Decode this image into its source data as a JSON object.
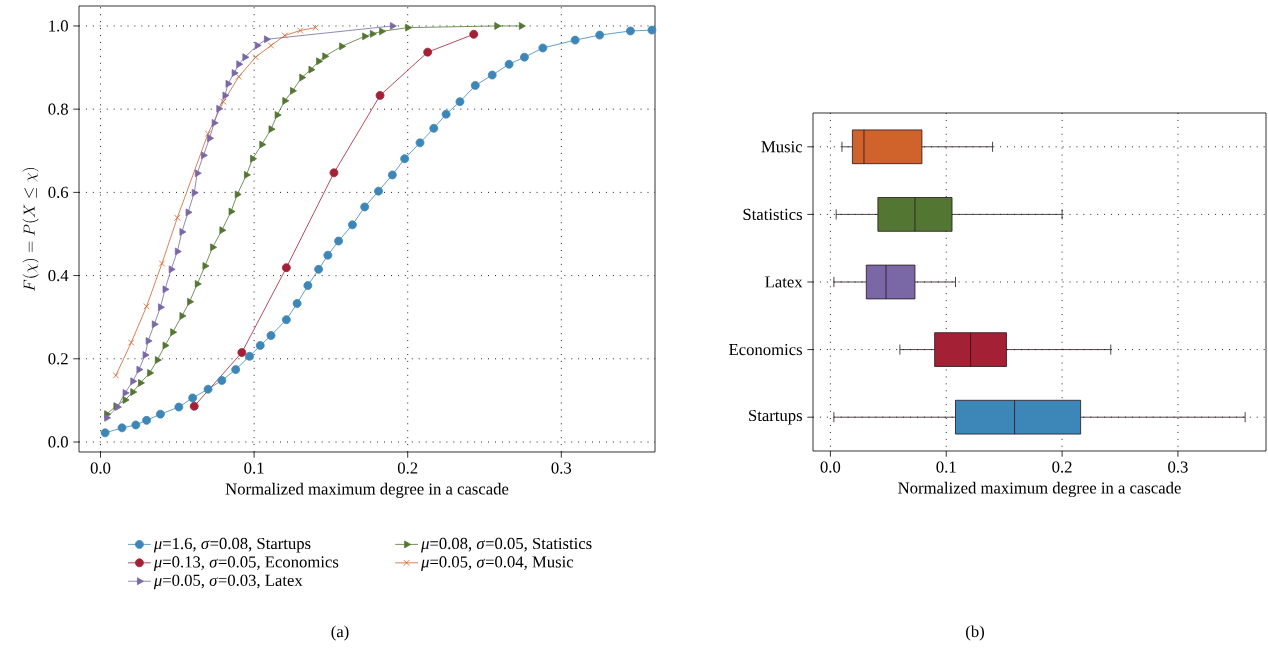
{
  "chart_data": [
    {
      "type": "line",
      "xlabel": "Normalized maximum degree in a cascade",
      "ylabel": "F(\\chi) = P(X \\leq \\chi)",
      "xlim": [
        -0.014,
        0.361
      ],
      "ylim": [
        -0.024,
        1.048
      ],
      "xticks": [
        {
          "value": 0,
          "label": "0.0"
        },
        0.1,
        0.2,
        0.3
      ],
      "yticks": [
        {
          "value": 0,
          "label": "0.0"
        },
        0.2,
        0.4,
        0.6,
        0.8,
        {
          "value": 1,
          "label": "1.0"
        }
      ],
      "grid": true,
      "legend": "bottom",
      "annotations": [
        "(a)"
      ],
      "series": [
        {
          "name": "*μ*=1.6, *σ*=0.08, Startups",
          "color": "#3d87b8",
          "marker": "circle",
          "x": [
            0.003,
            0.014,
            0.023,
            0.03,
            0.039,
            0.051,
            0.06,
            0.07,
            0.079,
            0.088,
            0.097,
            0.104,
            0.111,
            0.121,
            0.128,
            0.135,
            0.142,
            0.148,
            0.155,
            0.164,
            0.172,
            0.181,
            0.19,
            0.198,
            0.208,
            0.217,
            0.225,
            0.234,
            0.244,
            0.255,
            0.266,
            0.276,
            0.288,
            0.309,
            0.325,
            0.345,
            0.359
          ],
          "values": [
            0.022,
            0.034,
            0.041,
            0.052,
            0.067,
            0.084,
            0.106,
            0.127,
            0.148,
            0.174,
            0.206,
            0.232,
            0.256,
            0.294,
            0.333,
            0.376,
            0.415,
            0.449,
            0.483,
            0.522,
            0.565,
            0.603,
            0.642,
            0.681,
            0.719,
            0.754,
            0.788,
            0.818,
            0.857,
            0.882,
            0.908,
            0.925,
            0.947,
            0.966,
            0.978,
            0.988,
            0.99
          ]
        },
        {
          "name": "*μ*=0.08, *σ*=0.05, Statistics",
          "color": "#537633",
          "marker": "triangle",
          "x": [
            0.004,
            0.01,
            0.016,
            0.021,
            0.026,
            0.032,
            0.037,
            0.042,
            0.047,
            0.053,
            0.058,
            0.063,
            0.068,
            0.073,
            0.079,
            0.085,
            0.089,
            0.095,
            0.099,
            0.105,
            0.111,
            0.115,
            0.12,
            0.125,
            0.131,
            0.137,
            0.142,
            0.146,
            0.157,
            0.172,
            0.177,
            0.183,
            0.2,
            0.258,
            0.274
          ],
          "values": [
            0.067,
            0.086,
            0.101,
            0.12,
            0.142,
            0.166,
            0.197,
            0.232,
            0.264,
            0.303,
            0.337,
            0.38,
            0.423,
            0.468,
            0.509,
            0.554,
            0.595,
            0.642,
            0.681,
            0.715,
            0.752,
            0.786,
            0.82,
            0.844,
            0.876,
            0.895,
            0.915,
            0.927,
            0.951,
            0.975,
            0.981,
            0.987,
            0.996,
            1.0,
            1.0
          ]
        },
        {
          "name": "*μ*=0.13, *σ*=0.05, Economics",
          "color": "#a32035",
          "marker": "circle",
          "x": [
            0.061,
            0.092,
            0.121,
            0.152,
            0.182,
            0.213,
            0.243
          ],
          "values": [
            0.086,
            0.215,
            0.419,
            0.647,
            0.833,
            0.937,
            0.98
          ]
        },
        {
          "name": "*μ*=0.05, *σ*=0.04, Music",
          "color": "#d0622b",
          "marker": "cross",
          "x": [
            0.01,
            0.02,
            0.03,
            0.04,
            0.05,
            0.07,
            0.08,
            0.09,
            0.101,
            0.111,
            0.12,
            0.13,
            0.14
          ],
          "values": [
            0.16,
            0.239,
            0.326,
            0.429,
            0.539,
            0.741,
            0.818,
            0.878,
            0.925,
            0.953,
            0.977,
            0.989,
            0.996
          ]
        },
        {
          "name": "*μ*=0.05, *σ*=0.03, Latex",
          "color": "#7a68a6",
          "marker": "triangle",
          "x": [
            0.004,
            0.011,
            0.016,
            0.021,
            0.025,
            0.029,
            0.031,
            0.035,
            0.039,
            0.042,
            0.046,
            0.05,
            0.053,
            0.057,
            0.061,
            0.063,
            0.067,
            0.071,
            0.074,
            0.077,
            0.081,
            0.083,
            0.087,
            0.09,
            0.094,
            0.102,
            0.108,
            0.19
          ],
          "values": [
            0.058,
            0.084,
            0.118,
            0.146,
            0.174,
            0.209,
            0.243,
            0.283,
            0.324,
            0.367,
            0.415,
            0.458,
            0.505,
            0.552,
            0.599,
            0.646,
            0.689,
            0.73,
            0.767,
            0.801,
            0.833,
            0.861,
            0.887,
            0.908,
            0.925,
            0.953,
            0.968,
            1.0
          ]
        }
      ]
    },
    {
      "type": "box",
      "orientation": "horizontal",
      "xlabel": "Normalized maximum degree in a cascade",
      "categories": [
        "Music",
        "Statistics",
        "Latex",
        "Economics",
        "Startups"
      ],
      "colors": [
        "#d0622b",
        "#537633",
        "#7a68a6",
        "#a32035",
        "#3d87b8"
      ],
      "boxes": [
        {
          "low": 0.01,
          "q1": 0.019,
          "median": 0.029,
          "q3": 0.079,
          "high": 0.14
        },
        {
          "low": 0.005,
          "q1": 0.041,
          "median": 0.073,
          "q3": 0.105,
          "high": 0.2
        },
        {
          "low": 0.003,
          "q1": 0.031,
          "median": 0.048,
          "q3": 0.073,
          "high": 0.108
        },
        {
          "low": 0.06,
          "q1": 0.09,
          "median": 0.121,
          "q3": 0.152,
          "high": 0.242
        },
        {
          "low": 0.003,
          "q1": 0.108,
          "median": 0.159,
          "q3": 0.216,
          "high": 0.358
        }
      ],
      "xlim": [
        -0.015,
        0.376
      ],
      "xticks": [
        {
          "value": 0,
          "label": "0.0"
        },
        0.1,
        0.2,
        0.3
      ],
      "grid": true,
      "annotations": [
        "(b)"
      ]
    }
  ]
}
